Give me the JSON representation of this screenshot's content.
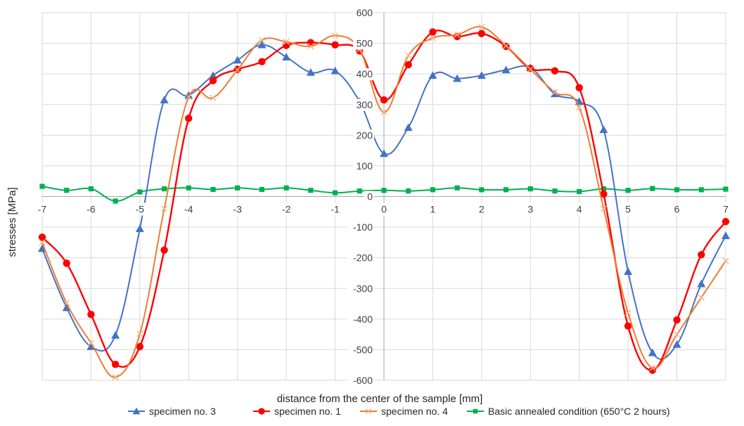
{
  "chart_data": {
    "type": "line",
    "title": "",
    "xlabel": "distance from the center of the sample [mm]",
    "ylabel": "stresses [MPa]",
    "xlim": [
      -7,
      7
    ],
    "ylim": [
      -600,
      600
    ],
    "x_ticks": [
      -7,
      -6,
      -5,
      -4,
      -3,
      -2,
      -1,
      0,
      1,
      2,
      3,
      4,
      5,
      6,
      7
    ],
    "y_ticks": [
      -600,
      -500,
      -400,
      -300,
      -200,
      -100,
      0,
      100,
      200,
      300,
      400,
      500,
      600
    ],
    "grid": "vertical-and-horizontal",
    "legend_position": "bottom",
    "x": [
      -7,
      -6.5,
      -6,
      -5.5,
      -5,
      -4.5,
      -4,
      -3.5,
      -3,
      -2.5,
      -2,
      -1.5,
      -1,
      -0.5,
      0,
      0.5,
      1,
      1.5,
      2,
      2.5,
      3,
      3.5,
      4,
      4.5,
      5,
      5.5,
      6,
      6.5,
      7
    ],
    "series": [
      {
        "name": "specimen no. 3",
        "color": "#4472c4",
        "marker": "triangle",
        "values": [
          -170,
          -363,
          -490,
          -453,
          -105,
          315,
          330,
          395,
          445,
          495,
          455,
          405,
          410,
          310,
          140,
          225,
          395,
          385,
          395,
          413,
          420,
          335,
          310,
          218,
          -245,
          -510,
          -483,
          -285,
          -128
        ]
      },
      {
        "name": "specimen no. 1",
        "color": "#ff0000",
        "marker": "circle",
        "values": [
          -133,
          -218,
          -385,
          -548,
          -490,
          -175,
          255,
          378,
          415,
          440,
          493,
          502,
          495,
          475,
          315,
          430,
          537,
          522,
          532,
          490,
          418,
          410,
          355,
          8,
          -423,
          -567,
          -403,
          -190,
          -82
        ]
      },
      {
        "name": "specimen no. 4",
        "color": "#ed7d31",
        "marker": "x",
        "values": [
          -150,
          -348,
          -478,
          -590,
          -448,
          -40,
          325,
          322,
          413,
          510,
          505,
          490,
          525,
          480,
          275,
          460,
          517,
          528,
          553,
          492,
          415,
          340,
          290,
          -40,
          -380,
          -560,
          -450,
          -330,
          -210
        ]
      },
      {
        "name": "Basic annealed condition (650°C 2 hours)",
        "color": "#00b050",
        "marker": "square",
        "values": [
          33,
          20,
          25,
          -15,
          15,
          25,
          28,
          23,
          28,
          23,
          28,
          20,
          12,
          18,
          20,
          18,
          22,
          28,
          22,
          22,
          25,
          18,
          16,
          25,
          20,
          26,
          22,
          22,
          24
        ]
      }
    ]
  }
}
